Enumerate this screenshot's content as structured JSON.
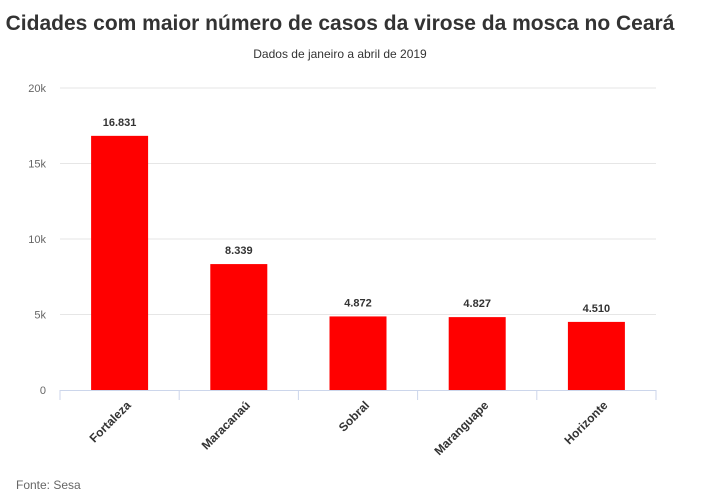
{
  "chart_data": {
    "type": "bar",
    "title": "Cidades com maior número de casos da virose da mosca no Ceará",
    "subtitle": "Dados de janeiro a abril de 2019",
    "categories": [
      "Fortaleza",
      "Maracanaú",
      "Sobral",
      "Maranguape",
      "Horizonte"
    ],
    "values": [
      16831,
      8339,
      4872,
      4827,
      4510
    ],
    "data_labels": [
      "16.831",
      "8.339",
      "4.872",
      "4.827",
      "4.510"
    ],
    "y_ticks": [
      0,
      5000,
      10000,
      15000,
      20000
    ],
    "y_tick_labels": [
      "0",
      "5k",
      "10k",
      "15k",
      "20k"
    ],
    "ylim": [
      0,
      20000
    ],
    "xlabel": "",
    "ylabel": "",
    "grid": true,
    "bar_color": "#ff0000",
    "source": "Fonte: Sesa"
  }
}
